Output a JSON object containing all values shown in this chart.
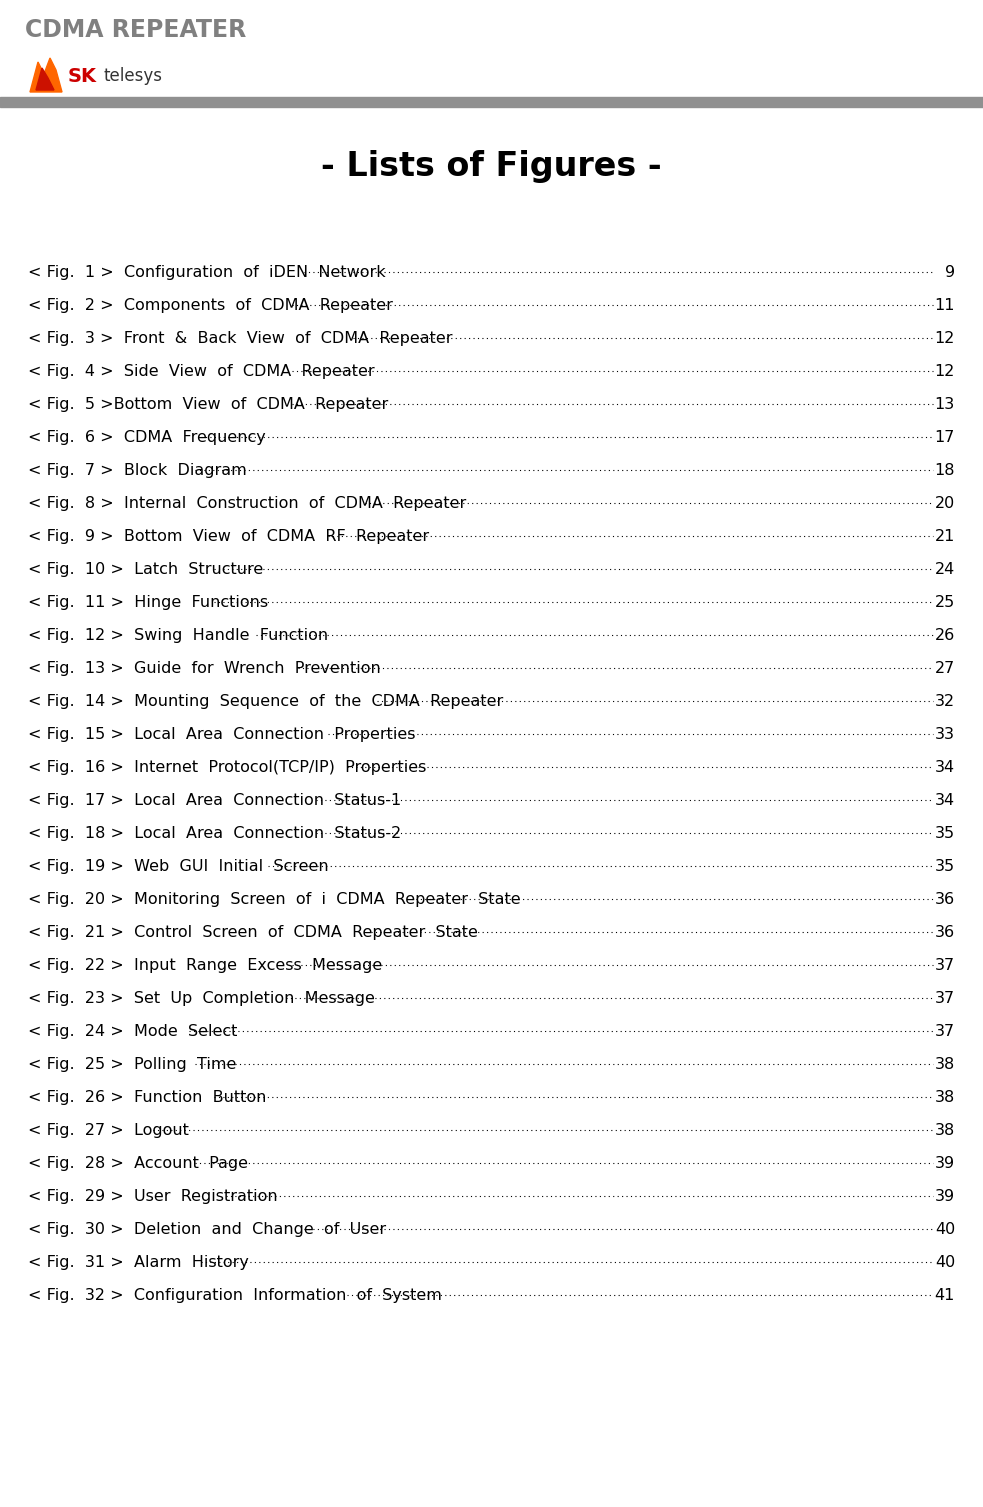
{
  "header_title": "CDMA REPEATER",
  "header_title_color": "#808080",
  "header_title_fontsize": 17,
  "separator_color": "#909090",
  "page_title": "- Lists of Figures -",
  "page_title_fontsize": 24,
  "background_color": "#ffffff",
  "entries": [
    {
      "label": "< Fig.  1 >  Configuration  of  iDEN  Network",
      "page": "9"
    },
    {
      "label": "< Fig.  2 >  Components  of  CDMA  Repeater",
      "page": "11"
    },
    {
      "label": "< Fig.  3 >  Front  &  Back  View  of  CDMA  Repeater",
      "page": "12"
    },
    {
      "label": "< Fig.  4 >  Side  View  of  CDMA  Repeater",
      "page": "12"
    },
    {
      "label": "< Fig.  5 >Bottom  View  of  CDMA  Repeater",
      "page": "13"
    },
    {
      "label": "< Fig.  6 >  CDMA  Frequency",
      "page": "17"
    },
    {
      "label": "< Fig.  7 >  Block  Diagram",
      "page": "18"
    },
    {
      "label": "< Fig.  8 >  Internal  Construction  of  CDMA  Repeater",
      "page": "20"
    },
    {
      "label": "< Fig.  9 >  Bottom  View  of  CDMA  RF  Repeater",
      "page": "21"
    },
    {
      "label": "< Fig.  10 >  Latch  Structure",
      "page": "24"
    },
    {
      "label": "< Fig.  11 >  Hinge  Functions",
      "page": "25"
    },
    {
      "label": "< Fig.  12 >  Swing  Handle  Function",
      "page": "26"
    },
    {
      "label": "< Fig.  13 >  Guide  for  Wrench  Prevention",
      "page": "27"
    },
    {
      "label": "< Fig.  14 >  Mounting  Sequence  of  the  CDMA  Repeater",
      "page": "32"
    },
    {
      "label": "< Fig.  15 >  Local  Area  Connection  Properties",
      "page": "33"
    },
    {
      "label": "< Fig.  16 >  Internet  Protocol(TCP/IP)  Properties",
      "page": "34"
    },
    {
      "label": "< Fig.  17 >  Local  Area  Connection  Status-1",
      "page": "34"
    },
    {
      "label": "< Fig.  18 >  Local  Area  Connection  Status-2",
      "page": "35"
    },
    {
      "label": "< Fig.  19 >  Web  GUI  Initial  Screen",
      "page": "35"
    },
    {
      "label": "< Fig.  20 >  Monitoring  Screen  of  i  CDMA  Repeater  State",
      "page": "36"
    },
    {
      "label": "< Fig.  21 >  Control  Screen  of  CDMA  Repeater  State",
      "page": "36"
    },
    {
      "label": "< Fig.  22 >  Input  Range  Excess  Message",
      "page": "37"
    },
    {
      "label": "< Fig.  23 >  Set  Up  Completion  Message",
      "page": "37"
    },
    {
      "label": "< Fig.  24 >  Mode  Select",
      "page": "37"
    },
    {
      "label": "< Fig.  25 >  Polling  Time",
      "page": "38"
    },
    {
      "label": "< Fig.  26 >  Function  Button",
      "page": "38"
    },
    {
      "label": "< Fig.  27 >  Logout",
      "page": "38"
    },
    {
      "label": "< Fig.  28 >  Account  Page",
      "page": "39"
    },
    {
      "label": "< Fig.  29 >  User  Registration",
      "page": "39"
    },
    {
      "label": "< Fig.  30 >  Deletion  and  Change  of  User",
      "page": "40"
    },
    {
      "label": "< Fig.  31 >  Alarm  History",
      "page": "40"
    },
    {
      "label": "< Fig.  32 >  Configuration  Information  of  System",
      "page": "41"
    }
  ],
  "entry_fontsize": 11.5,
  "entry_color": "#000000",
  "dots_color": "#000000"
}
